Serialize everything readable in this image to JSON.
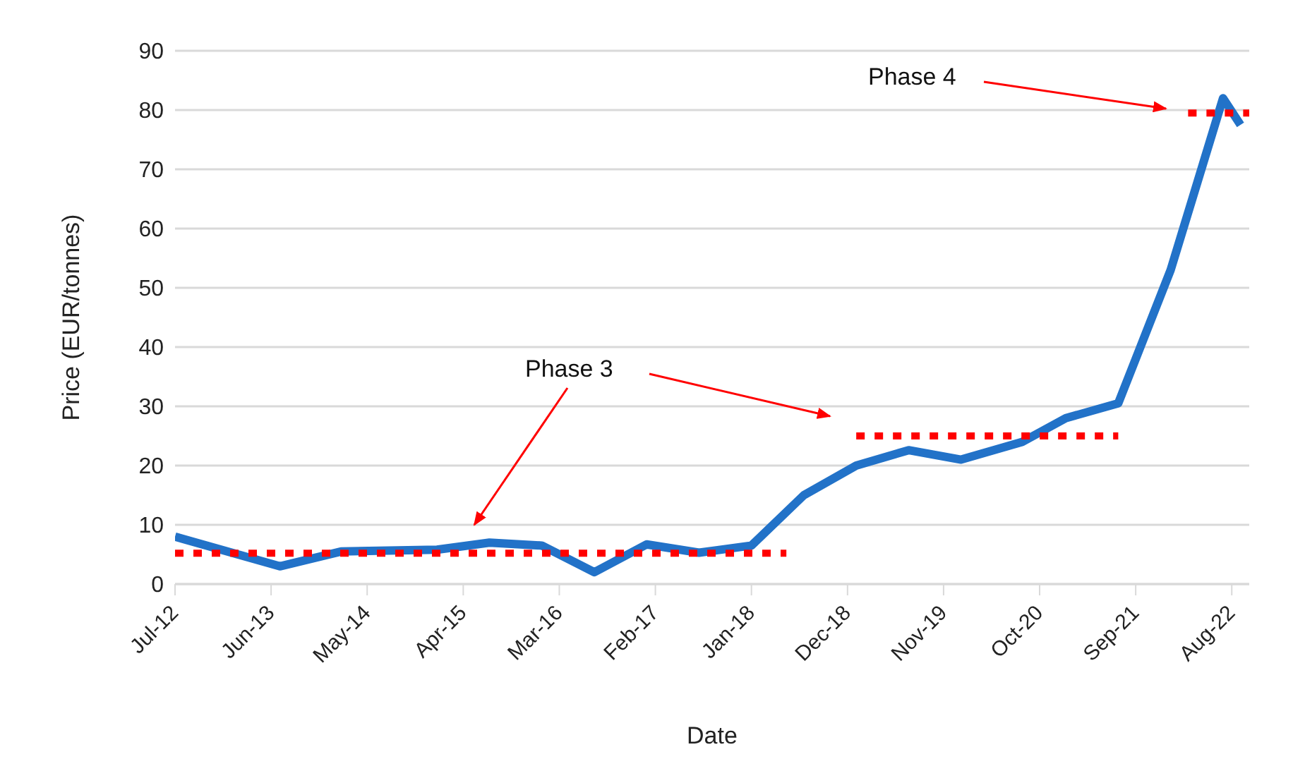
{
  "chart_data": {
    "type": "line",
    "xlabel": "Date",
    "ylabel": "Price (EUR/tonnes)",
    "xlim": [
      "2012-07",
      "2022-10"
    ],
    "xticks": [
      {
        "value": "2012-07",
        "label": "Jul-12"
      },
      {
        "value": "2013-06",
        "label": "Jun-13"
      },
      {
        "value": "2014-05",
        "label": "May-14"
      },
      {
        "value": "2015-04",
        "label": "Apr-15"
      },
      {
        "value": "2016-03",
        "label": "Mar-16"
      },
      {
        "value": "2017-02",
        "label": "Feb-17"
      },
      {
        "value": "2018-01",
        "label": "Jan-18"
      },
      {
        "value": "2018-12",
        "label": "Dec-18"
      },
      {
        "value": "2019-11",
        "label": "Nov-19"
      },
      {
        "value": "2020-10",
        "label": "Oct-20"
      },
      {
        "value": "2021-09",
        "label": "Sep-21"
      },
      {
        "value": "2022-08",
        "label": "Aug-22"
      }
    ],
    "ylim": [
      0,
      90
    ],
    "yticks": [
      0,
      10,
      20,
      30,
      40,
      50,
      60,
      70,
      80,
      90
    ],
    "grid": "y",
    "series": [
      {
        "color": "#2272c8",
        "line_style": "solid",
        "x": [
          "2012-07",
          "2013-07",
          "2014-02",
          "2015-01",
          "2015-07",
          "2016-01",
          "2016-07",
          "2017-01",
          "2017-07",
          "2018-01",
          "2018-07",
          "2019-01",
          "2019-07",
          "2020-01",
          "2020-08",
          "2021-01",
          "2021-07",
          "2022-01",
          "2022-07",
          "2022-09"
        ],
        "values": [
          8,
          3,
          5.5,
          5.8,
          7,
          6.5,
          2,
          6.7,
          5.3,
          6.5,
          15,
          20,
          22.6,
          21,
          24,
          28,
          30.5,
          53,
          82,
          77.5
        ]
      },
      {
        "color": "#ff0000",
        "line_style": "dotted",
        "x": [
          "2012-07",
          "2018-05"
        ],
        "values": [
          5.2,
          5.2
        ]
      },
      {
        "color": "#ff0000",
        "line_style": "dotted",
        "x": [
          "2019-01",
          "2021-07"
        ],
        "values": [
          25,
          25
        ]
      },
      {
        "color": "#ff0000",
        "line_style": "dotted",
        "x": [
          "2022-03",
          "2022-10"
        ],
        "values": [
          79.5,
          79.5
        ]
      }
    ],
    "annotations": [
      "Phase 3",
      "Phase 4"
    ]
  }
}
